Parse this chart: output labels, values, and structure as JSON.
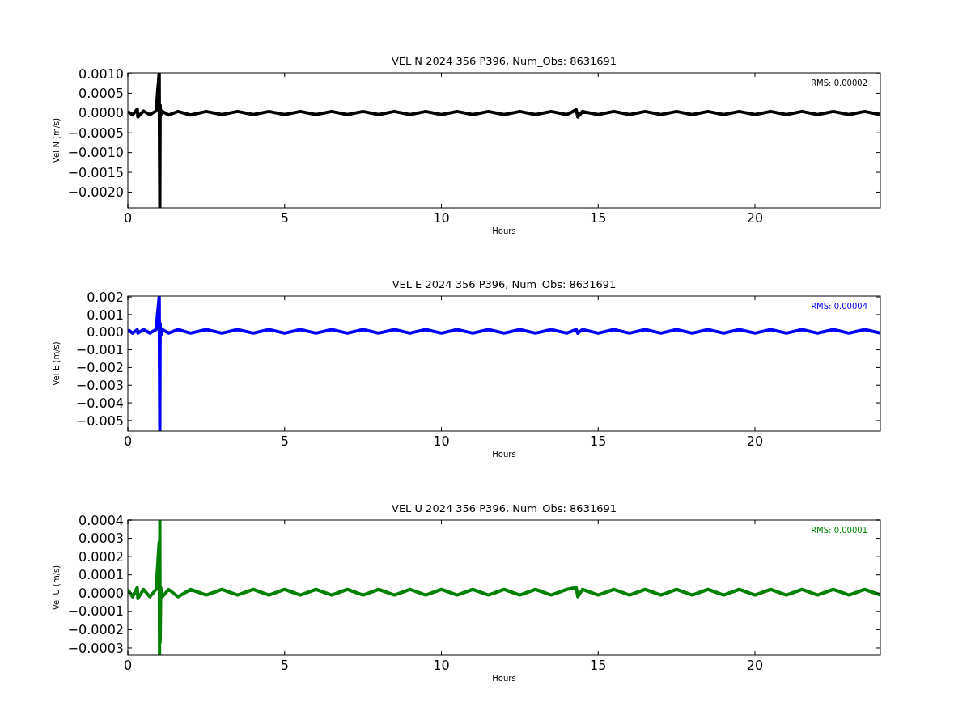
{
  "chart_data": [
    {
      "type": "line",
      "title": "VEL N 2024 356  P396, Num_Obs: 8631691",
      "xlabel": "Hours",
      "ylabel": "Vel-N (m/s)",
      "annotations": [
        "RMS:  0.00002"
      ],
      "x": [
        0,
        0.15,
        0.3,
        0.32,
        0.5,
        0.7,
        0.9,
        1.0,
        1.01,
        1.02,
        1.03,
        1.05,
        1.1,
        1.3,
        1.6,
        2.0,
        2.5,
        3,
        3.5,
        4,
        4.5,
        5,
        5.5,
        6,
        6.5,
        7,
        7.5,
        8,
        8.5,
        9,
        9.5,
        10,
        10.5,
        11,
        11.5,
        12,
        12.5,
        13,
        13.5,
        14,
        14.3,
        14.35,
        14.5,
        15,
        15.5,
        16,
        16.5,
        17,
        17.5,
        18,
        18.5,
        19,
        19.5,
        20,
        20.5,
        21,
        21.5,
        22,
        22.5,
        23,
        23.5,
        24
      ],
      "series": [
        {
          "color": "#000000",
          "values": [
            4e-05,
            -5e-05,
            0.0001,
            -0.0001,
            5e-05,
            -4e-05,
            5e-05,
            0.00102,
            -0.0009,
            -0.0024,
            0.0002,
            -5e-05,
            4e-05,
            -5e-05,
            4e-05,
            -5e-05,
            4e-05,
            -4e-05,
            4e-05,
            -4e-05,
            4e-05,
            -4e-05,
            4e-05,
            -4e-05,
            4e-05,
            -4e-05,
            4e-05,
            -4e-05,
            4e-05,
            -4e-05,
            4e-05,
            -4e-05,
            4e-05,
            -4e-05,
            4e-05,
            -4e-05,
            4e-05,
            -4e-05,
            4e-05,
            -4e-05,
            8e-05,
            -0.0001,
            4e-05,
            -4e-05,
            4e-05,
            -4e-05,
            4e-05,
            -4e-05,
            4e-05,
            -4e-05,
            4e-05,
            -4e-05,
            4e-05,
            -4e-05,
            4e-05,
            -4e-05,
            4e-05,
            -4e-05,
            4e-05,
            -4e-05,
            4e-05,
            -4e-05
          ]
        }
      ],
      "xlim": [
        0,
        24
      ],
      "xticks": [
        0,
        5,
        10,
        15,
        20
      ],
      "ylim": [
        -0.0024,
        0.00102
      ],
      "yticks": [
        {
          "value": -0.002,
          "label": "−0.0020"
        },
        {
          "value": -0.0015,
          "label": "−0.0015"
        },
        {
          "value": -0.001,
          "label": "−0.0010"
        },
        {
          "value": -0.0005,
          "label": "−0.0005"
        },
        {
          "value": 0,
          "label": "0.0000"
        },
        {
          "value": 0.0005,
          "label": "0.0005"
        },
        {
          "value": 0.001,
          "label": "0.0010"
        }
      ]
    },
    {
      "type": "line",
      "title": "VEL E 2024 356  P396, Num_Obs: 8631691",
      "xlabel": "Hours",
      "ylabel": "Vel-E (m/s)",
      "annotations": [
        "RMS:  0.00004"
      ],
      "x": [
        0,
        0.15,
        0.3,
        0.32,
        0.5,
        0.7,
        0.9,
        1.0,
        1.01,
        1.02,
        1.03,
        1.05,
        1.1,
        1.3,
        1.6,
        2.0,
        2.5,
        3,
        3.5,
        4,
        4.5,
        5,
        5.5,
        6,
        6.5,
        7,
        7.5,
        8,
        8.5,
        9,
        9.5,
        10,
        10.5,
        11,
        11.5,
        12,
        12.5,
        13,
        13.5,
        14,
        14.3,
        14.35,
        14.5,
        15,
        15.5,
        16,
        16.5,
        17,
        17.5,
        18,
        18.5,
        19,
        19.5,
        20,
        20.5,
        21,
        21.5,
        22,
        22.5,
        23,
        23.5,
        24
      ],
      "series": [
        {
          "color": "#0000ff",
          "values": [
            0.00015,
            -5e-05,
            0.00015,
            -5e-05,
            0.00015,
            -5e-05,
            0.00015,
            0.002,
            -0.002,
            -0.0056,
            0.0005,
            -0.0002,
            0.00015,
            -5e-05,
            0.00015,
            -5e-05,
            0.00015,
            -5e-05,
            0.00015,
            -5e-05,
            0.00015,
            -5e-05,
            0.00015,
            -5e-05,
            0.00015,
            -5e-05,
            0.00015,
            -5e-05,
            0.00015,
            -5e-05,
            0.00015,
            -5e-05,
            0.00015,
            -5e-05,
            0.00015,
            -5e-05,
            0.00015,
            -5e-05,
            0.00015,
            -5e-05,
            0.00015,
            -5e-05,
            0.00015,
            -5e-05,
            0.00015,
            -5e-05,
            0.00015,
            -5e-05,
            0.00015,
            -5e-05,
            0.00015,
            -5e-05,
            0.00015,
            -5e-05,
            0.00015,
            -5e-05,
            0.00015,
            -5e-05,
            0.00015,
            -5e-05,
            0.00015,
            -5e-05
          ]
        }
      ],
      "xlim": [
        0,
        24
      ],
      "xticks": [
        0,
        5,
        10,
        15,
        20
      ],
      "ylim": [
        -0.0056,
        0.00205
      ],
      "yticks": [
        {
          "value": -0.005,
          "label": "−0.005"
        },
        {
          "value": -0.004,
          "label": "−0.004"
        },
        {
          "value": -0.003,
          "label": "−0.003"
        },
        {
          "value": -0.002,
          "label": "−0.002"
        },
        {
          "value": -0.001,
          "label": "−0.001"
        },
        {
          "value": 0,
          "label": "0.000"
        },
        {
          "value": 0.001,
          "label": "0.001"
        },
        {
          "value": 0.002,
          "label": "0.002"
        }
      ]
    },
    {
      "type": "line",
      "title": "VEL U 2024 356  P396, Num_Obs: 8631691",
      "xlabel": "Hours",
      "ylabel": "Vel-U (m/s)",
      "annotations": [
        "RMS:  0.00001"
      ],
      "x": [
        0,
        0.15,
        0.3,
        0.32,
        0.5,
        0.7,
        0.9,
        1.0,
        1.01,
        1.02,
        1.03,
        1.05,
        1.1,
        1.3,
        1.6,
        2.0,
        2.5,
        3,
        3.5,
        4,
        4.5,
        5,
        5.5,
        6,
        6.5,
        7,
        7.5,
        8,
        8.5,
        9,
        9.5,
        10,
        10.5,
        11,
        11.5,
        12,
        12.5,
        13,
        13.5,
        14,
        14.3,
        14.35,
        14.5,
        15,
        15.5,
        16,
        16.5,
        17,
        17.5,
        18,
        18.5,
        19,
        19.5,
        20,
        20.5,
        21,
        21.5,
        22,
        22.5,
        23,
        23.5,
        24
      ],
      "series": [
        {
          "color": "#008000",
          "values": [
            2e-05,
            -2e-05,
            3e-05,
            -3e-05,
            2e-05,
            -2e-05,
            2e-05,
            0.00028,
            -0.00034,
            0.0004,
            -0.00027,
            3e-05,
            -2e-05,
            2e-05,
            -2e-05,
            2e-05,
            -1e-05,
            2e-05,
            -1e-05,
            2e-05,
            -1e-05,
            2e-05,
            -1e-05,
            2e-05,
            -1e-05,
            2e-05,
            -1e-05,
            2e-05,
            -1e-05,
            2e-05,
            -1e-05,
            2e-05,
            -1e-05,
            2e-05,
            -1e-05,
            2e-05,
            -1e-05,
            2e-05,
            -1e-05,
            2e-05,
            3e-05,
            -2e-05,
            2e-05,
            -1e-05,
            2e-05,
            -1e-05,
            2e-05,
            -1e-05,
            2e-05,
            -1e-05,
            2e-05,
            -1e-05,
            2e-05,
            -1e-05,
            2e-05,
            -1e-05,
            2e-05,
            -1e-05,
            2e-05,
            -1e-05,
            2e-05,
            -1e-05
          ]
        }
      ],
      "xlim": [
        0,
        24
      ],
      "xticks": [
        0,
        5,
        10,
        15,
        20
      ],
      "ylim": [
        -0.00034,
        0.0004
      ],
      "yticks": [
        {
          "value": -0.0003,
          "label": "−0.0003"
        },
        {
          "value": -0.0002,
          "label": "−0.0002"
        },
        {
          "value": -0.0001,
          "label": "−0.0001"
        },
        {
          "value": 0,
          "label": "0.0000"
        },
        {
          "value": 0.0001,
          "label": "0.0001"
        },
        {
          "value": 0.0002,
          "label": "0.0002"
        },
        {
          "value": 0.0003,
          "label": "0.0003"
        },
        {
          "value": 0.0004,
          "label": "0.0004"
        }
      ]
    }
  ]
}
